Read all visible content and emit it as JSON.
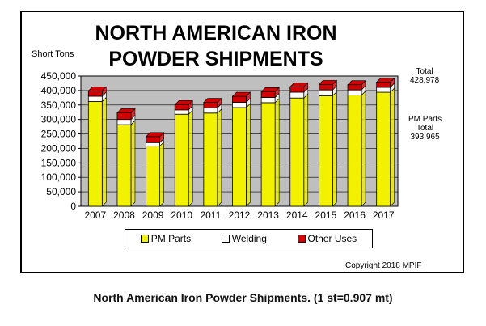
{
  "page": {
    "caption": "North American Iron Powder Shipments. (1 st=0.907 mt)"
  },
  "chart_data": {
    "type": "bar",
    "stacked": true,
    "title_line1": "NORTH AMERICAN IRON",
    "title_line2": "POWDER SHIPMENTS",
    "ylabel": "Short Tons",
    "ylim": [
      0,
      450000
    ],
    "yticks": [
      "0",
      "50,000",
      "100,000",
      "150,000",
      "200,000",
      "250,000",
      "300,000",
      "350,000",
      "400,000",
      "450,000"
    ],
    "ytick_values": [
      0,
      50000,
      100000,
      150000,
      200000,
      250000,
      300000,
      350000,
      400000,
      450000
    ],
    "categories": [
      "2007",
      "2008",
      "2009",
      "2010",
      "2011",
      "2012",
      "2013",
      "2014",
      "2015",
      "2016",
      "2017"
    ],
    "series": [
      {
        "name": "PM Parts",
        "color": "#f2f200",
        "values": [
          362000,
          282000,
          208000,
          318000,
          322000,
          341000,
          358000,
          374000,
          382000,
          384000,
          393965
        ]
      },
      {
        "name": "Welding",
        "color": "#ffffff",
        "values": [
          18000,
          18000,
          12000,
          15000,
          18000,
          18000,
          18000,
          20000,
          20000,
          18000,
          17000
        ]
      },
      {
        "name": "Other Uses",
        "color": "#d00000",
        "values": [
          19000,
          23000,
          21000,
          18000,
          19000,
          21000,
          20000,
          19000,
          19000,
          18000,
          18013
        ]
      }
    ],
    "annotations": {
      "total_label": "Total",
      "total_value": "428,978",
      "pm_label_1": "PM Parts",
      "pm_label_2": "Total",
      "pm_value": "393,965"
    },
    "copyright": "Copyright 2018 MPIF",
    "grid": true,
    "legend_position": "bottom"
  }
}
